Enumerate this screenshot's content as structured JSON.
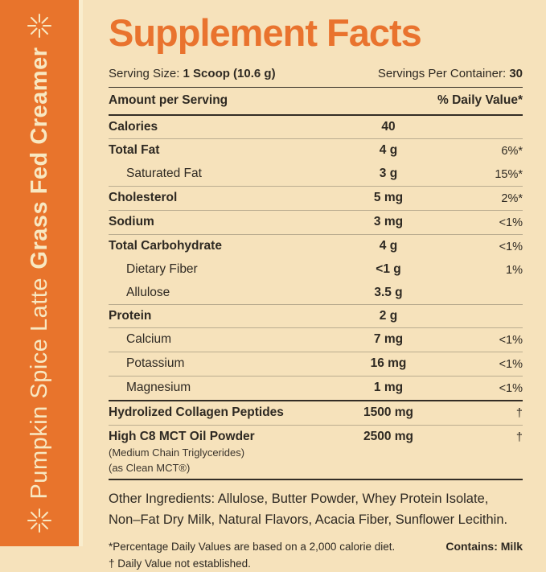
{
  "sidebar": {
    "product_name": "Grass Fed Creamer",
    "flavor": "Pumpkin Spice Latte",
    "bg_color": "#E8742C",
    "text_color": "#F8E8C2",
    "icon": "eight-spoke-starburst"
  },
  "panel": {
    "bg_color": "#F6E2BB",
    "title": "Supplement Facts",
    "title_color": "#E9732E",
    "serving": {
      "size_label": "Serving Size: ",
      "size_value": "1 Scoop (10.6 g)",
      "per_container_label": "Servings Per Container: ",
      "per_container_value": "30"
    },
    "columns": {
      "amount_header": "Amount per Serving",
      "dv_header": "% Daily Value*"
    },
    "rows": [
      {
        "label": "Calories",
        "amount": "40",
        "dv": "",
        "bold": true,
        "indent": false,
        "divider": "light"
      },
      {
        "label": "Total Fat",
        "amount": "4 g",
        "dv": "6%*",
        "bold": true,
        "indent": false,
        "divider": "none"
      },
      {
        "label": "Saturated Fat",
        "amount": "3 g",
        "dv": "15%*",
        "bold": false,
        "indent": true,
        "divider": "light"
      },
      {
        "label": "Cholesterol",
        "amount": "5 mg",
        "dv": "2%*",
        "bold": true,
        "indent": false,
        "divider": "light"
      },
      {
        "label": "Sodium",
        "amount": "3 mg",
        "dv": "<1%",
        "bold": true,
        "indent": false,
        "divider": "light"
      },
      {
        "label": "Total Carbohydrate",
        "amount": "4 g",
        "dv": "<1%",
        "bold": true,
        "indent": false,
        "divider": "none"
      },
      {
        "label": "Dietary Fiber",
        "amount": "<1 g",
        "dv": "1%",
        "bold": false,
        "indent": true,
        "divider": "none"
      },
      {
        "label": "Allulose",
        "amount": "3.5 g",
        "dv": "",
        "bold": false,
        "indent": true,
        "divider": "light"
      },
      {
        "label": "Protein",
        "amount": "2 g",
        "dv": "",
        "bold": true,
        "indent": false,
        "divider": "light"
      },
      {
        "label": "Calcium",
        "amount": "7 mg",
        "dv": "<1%",
        "bold": false,
        "indent": true,
        "divider": "light"
      },
      {
        "label": "Potassium",
        "amount": "16 mg",
        "dv": "<1%",
        "bold": false,
        "indent": true,
        "divider": "light"
      },
      {
        "label": "Magnesium",
        "amount": "1 mg",
        "dv": "<1%",
        "bold": false,
        "indent": true,
        "divider": "dark"
      },
      {
        "label": "Hydrolized Collagen Peptides",
        "amount": "1500 mg",
        "dv": "†",
        "bold": true,
        "indent": false,
        "divider": "light"
      },
      {
        "label": "High C8 MCT Oil Powder",
        "amount": "2500 mg",
        "dv": "†",
        "bold": true,
        "indent": false,
        "divider": "dark",
        "sublabels": [
          "(Medium Chain Triglycerides)",
          "(as Clean MCT®)"
        ]
      }
    ],
    "other_ingredients": "Other Ingredients: Allulose, Butter Powder, Whey Protein Isolate, Non–Fat Dry Milk, Natural Flavors, Acacia Fiber, Sunflower Lecithin.",
    "footnotes": [
      "*Percentage Daily Values are based on a 2,000 calorie diet.",
      "† Daily Value not established."
    ],
    "contains": "Contains: Milk"
  }
}
